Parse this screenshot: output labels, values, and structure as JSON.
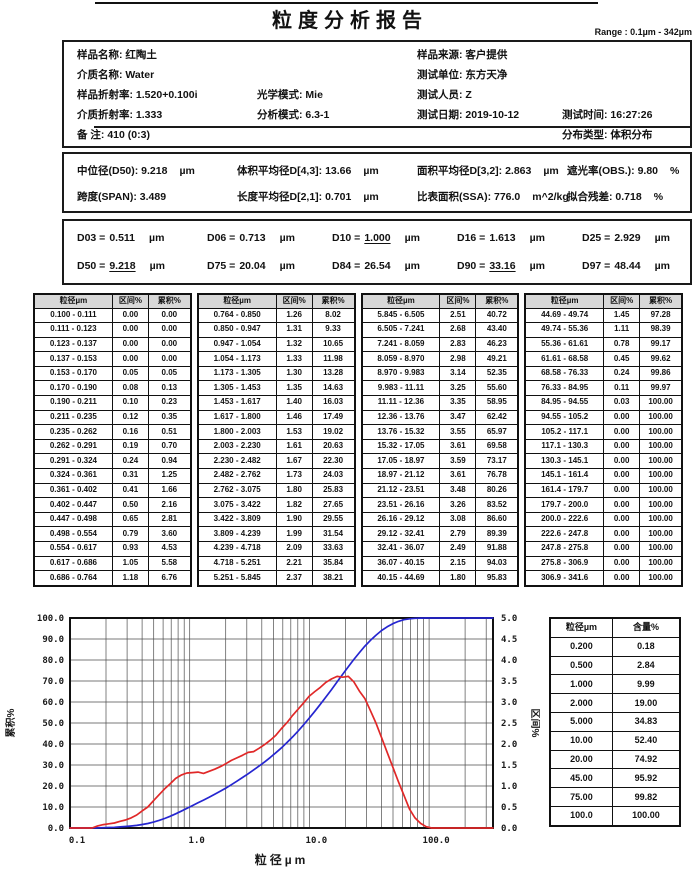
{
  "title": "粒度分析报告",
  "range_label": "Range : 0.1µm - 342µm",
  "info": {
    "sample_name": "样品名称: 红陶土",
    "sample_source": "样品来源: 客户提供",
    "medium_name": "介质名称: Water",
    "test_unit": "测试单位: 东方天净",
    "sample_ri": "样品折射率: 1.520+0.100i",
    "optical_mode": "光学模式: Mie",
    "tester": "测试人员: Z",
    "medium_ri": "介质折射率: 1.333",
    "analysis_mode": "分析模式: 6.3-1",
    "test_date": "测试日期: 2019-10-12",
    "test_time": "测试时间: 16:27:26",
    "remark": "备 注:  410  (0:3)",
    "dist_type": "分布类型: 体积分布"
  },
  "stats": {
    "items": [
      {
        "text": "中位径(D50): 9.218",
        "unit": "µm"
      },
      {
        "text": "体积平均径D[4,3]: 13.66",
        "unit": "µm"
      },
      {
        "text": "面积平均径D[3,2]: 2.863",
        "unit": "µm"
      },
      {
        "text": "遮光率(OBS.): 9.80",
        "unit": "%"
      },
      {
        "text": "跨度(SPAN): 3.489",
        "unit": ""
      },
      {
        "text": "长度平均径D[2,1]: 0.701",
        "unit": "µm"
      },
      {
        "text": "比表面积(SSA): 776.0",
        "unit": "m^2/kg"
      },
      {
        "text": "拟合残差: 0.718",
        "unit": "%"
      }
    ]
  },
  "d_values": [
    {
      "label": "D03 =",
      "value": "0.511",
      "unit": "µm",
      "underline": false
    },
    {
      "label": "D06 =",
      "value": "0.713",
      "unit": "µm",
      "underline": false
    },
    {
      "label": "D10 =",
      "value": "1.000",
      "unit": "µm",
      "underline": true
    },
    {
      "label": "D16 =",
      "value": "1.613",
      "unit": "µm",
      "underline": false
    },
    {
      "label": "D25 =",
      "value": "2.929",
      "unit": "µm",
      "underline": false
    },
    {
      "label": "D50 =",
      "value": "9.218",
      "unit": "µm",
      "underline": true
    },
    {
      "label": "D75 =",
      "value": "20.04",
      "unit": "µm",
      "underline": false
    },
    {
      "label": "D84 =",
      "value": "26.54",
      "unit": "µm",
      "underline": false
    },
    {
      "label": "D90 =",
      "value": "33.16",
      "unit": "µm",
      "underline": true
    },
    {
      "label": "D97 =",
      "value": "48.44",
      "unit": "µm",
      "underline": false
    }
  ],
  "table": {
    "headers": [
      "粒径µm",
      "区间%",
      "累积%"
    ],
    "groups": [
      {
        "rows": [
          [
            "0.100 - 0.111",
            "0.00",
            "0.00"
          ],
          [
            "0.111 - 0.123",
            "0.00",
            "0.00"
          ],
          [
            "0.123 - 0.137",
            "0.00",
            "0.00"
          ],
          [
            "0.137 - 0.153",
            "0.00",
            "0.00"
          ],
          [
            "0.153 - 0.170",
            "0.05",
            "0.05"
          ],
          [
            "0.170 - 0.190",
            "0.08",
            "0.13"
          ],
          [
            "0.190 - 0.211",
            "0.10",
            "0.23"
          ],
          [
            "0.211 - 0.235",
            "0.12",
            "0.35"
          ],
          [
            "0.235 - 0.262",
            "0.16",
            "0.51"
          ],
          [
            "0.262 - 0.291",
            "0.19",
            "0.70"
          ],
          [
            "0.291 - 0.324",
            "0.24",
            "0.94"
          ],
          [
            "0.324 - 0.361",
            "0.31",
            "1.25"
          ],
          [
            "0.361 - 0.402",
            "0.41",
            "1.66"
          ],
          [
            "0.402 - 0.447",
            "0.50",
            "2.16"
          ],
          [
            "0.447 - 0.498",
            "0.65",
            "2.81"
          ],
          [
            "0.498 - 0.554",
            "0.79",
            "3.60"
          ],
          [
            "0.554 - 0.617",
            "0.93",
            "4.53"
          ],
          [
            "0.617 - 0.686",
            "1.05",
            "5.58"
          ],
          [
            "0.686 - 0.764",
            "1.18",
            "6.76"
          ]
        ]
      },
      {
        "rows": [
          [
            "0.764 - 0.850",
            "1.26",
            "8.02"
          ],
          [
            "0.850 - 0.947",
            "1.31",
            "9.33"
          ],
          [
            "0.947 - 1.054",
            "1.32",
            "10.65"
          ],
          [
            "1.054 - 1.173",
            "1.33",
            "11.98"
          ],
          [
            "1.173 - 1.305",
            "1.30",
            "13.28"
          ],
          [
            "1.305 - 1.453",
            "1.35",
            "14.63"
          ],
          [
            "1.453 - 1.617",
            "1.40",
            "16.03"
          ],
          [
            "1.617 - 1.800",
            "1.46",
            "17.49"
          ],
          [
            "1.800 - 2.003",
            "1.53",
            "19.02"
          ],
          [
            "2.003 - 2.230",
            "1.61",
            "20.63"
          ],
          [
            "2.230 - 2.482",
            "1.67",
            "22.30"
          ],
          [
            "2.482 - 2.762",
            "1.73",
            "24.03"
          ],
          [
            "2.762 - 3.075",
            "1.80",
            "25.83"
          ],
          [
            "3.075 - 3.422",
            "1.82",
            "27.65"
          ],
          [
            "3.422 - 3.809",
            "1.90",
            "29.55"
          ],
          [
            "3.809 - 4.239",
            "1.99",
            "31.54"
          ],
          [
            "4.239 - 4.718",
            "2.09",
            "33.63"
          ],
          [
            "4.718 - 5.251",
            "2.21",
            "35.84"
          ],
          [
            "5.251 - 5.845",
            "2.37",
            "38.21"
          ]
        ]
      },
      {
        "rows": [
          [
            "5.845 - 6.505",
            "2.51",
            "40.72"
          ],
          [
            "6.505 - 7.241",
            "2.68",
            "43.40"
          ],
          [
            "7.241 - 8.059",
            "2.83",
            "46.23"
          ],
          [
            "8.059 - 8.970",
            "2.98",
            "49.21"
          ],
          [
            "8.970 - 9.983",
            "3.14",
            "52.35"
          ],
          [
            "9.983 - 11.11",
            "3.25",
            "55.60"
          ],
          [
            "11.11 - 12.36",
            "3.35",
            "58.95"
          ],
          [
            "12.36 - 13.76",
            "3.47",
            "62.42"
          ],
          [
            "13.76 - 15.32",
            "3.55",
            "65.97"
          ],
          [
            "15.32 - 17.05",
            "3.61",
            "69.58"
          ],
          [
            "17.05 - 18.97",
            "3.59",
            "73.17"
          ],
          [
            "18.97 - 21.12",
            "3.61",
            "76.78"
          ],
          [
            "21.12 - 23.51",
            "3.48",
            "80.26"
          ],
          [
            "23.51 - 26.16",
            "3.26",
            "83.52"
          ],
          [
            "26.16 - 29.12",
            "3.08",
            "86.60"
          ],
          [
            "29.12 - 32.41",
            "2.79",
            "89.39"
          ],
          [
            "32.41 - 36.07",
            "2.49",
            "91.88"
          ],
          [
            "36.07 - 40.15",
            "2.15",
            "94.03"
          ],
          [
            "40.15 - 44.69",
            "1.80",
            "95.83"
          ]
        ]
      },
      {
        "rows": [
          [
            "44.69 - 49.74",
            "1.45",
            "97.28"
          ],
          [
            "49.74 - 55.36",
            "1.11",
            "98.39"
          ],
          [
            "55.36 - 61.61",
            "0.78",
            "99.17"
          ],
          [
            "61.61 - 68.58",
            "0.45",
            "99.62"
          ],
          [
            "68.58 - 76.33",
            "0.24",
            "99.86"
          ],
          [
            "76.33 - 84.95",
            "0.11",
            "99.97"
          ],
          [
            "84.95 - 94.55",
            "0.03",
            "100.00"
          ],
          [
            "94.55 - 105.2",
            "0.00",
            "100.00"
          ],
          [
            "105.2 - 117.1",
            "0.00",
            "100.00"
          ],
          [
            "117.1 - 130.3",
            "0.00",
            "100.00"
          ],
          [
            "130.3 - 145.1",
            "0.00",
            "100.00"
          ],
          [
            "145.1 - 161.4",
            "0.00",
            "100.00"
          ],
          [
            "161.4 - 179.7",
            "0.00",
            "100.00"
          ],
          [
            "179.7 - 200.0",
            "0.00",
            "100.00"
          ],
          [
            "200.0 - 222.6",
            "0.00",
            "100.00"
          ],
          [
            "222.6 - 247.8",
            "0.00",
            "100.00"
          ],
          [
            "247.8 - 275.8",
            "0.00",
            "100.00"
          ],
          [
            "275.8 - 306.9",
            "0.00",
            "100.00"
          ],
          [
            "306.9 - 341.6",
            "0.00",
            "100.00"
          ]
        ]
      }
    ]
  },
  "summary_table": {
    "headers": [
      "粒径µm",
      "含量%"
    ],
    "rows": [
      [
        "0.200",
        "0.18"
      ],
      [
        "0.500",
        "2.84"
      ],
      [
        "1.000",
        "9.99"
      ],
      [
        "2.000",
        "19.00"
      ],
      [
        "5.000",
        "34.83"
      ],
      [
        "10.00",
        "52.40"
      ],
      [
        "20.00",
        "74.92"
      ],
      [
        "45.00",
        "95.92"
      ],
      [
        "75.00",
        "99.82"
      ],
      [
        "100.0",
        "100.00"
      ]
    ]
  },
  "chart_data": {
    "type": "line",
    "x_scale": "log",
    "xlabel": "粒径µm",
    "ylabel_left": "累积%",
    "ylabel_right": "区间%",
    "xlim": [
      0.1,
      342
    ],
    "ylim_left": [
      0,
      100
    ],
    "ylim_right": [
      0,
      5
    ],
    "left_tick_step": 10,
    "right_tick_step": 0.5,
    "grid": true,
    "x_ticks": [
      0.1,
      1,
      10,
      100
    ],
    "x_tick_labels": [
      "0.1",
      "1.0",
      "10.0",
      "100.0"
    ],
    "x": [
      0.1,
      0.111,
      0.123,
      0.137,
      0.153,
      0.17,
      0.19,
      0.211,
      0.235,
      0.262,
      0.291,
      0.324,
      0.361,
      0.402,
      0.447,
      0.498,
      0.554,
      0.617,
      0.686,
      0.764,
      0.85,
      0.947,
      1.054,
      1.173,
      1.305,
      1.453,
      1.617,
      1.8,
      2.003,
      2.23,
      2.482,
      2.762,
      3.075,
      3.422,
      3.809,
      4.239,
      4.718,
      5.251,
      5.845,
      6.505,
      7.241,
      8.059,
      8.97,
      9.983,
      11.11,
      12.36,
      13.76,
      15.32,
      17.05,
      18.97,
      21.12,
      23.51,
      26.16,
      29.12,
      32.41,
      36.07,
      40.15,
      44.69,
      49.74,
      55.36,
      61.61,
      68.58,
      76.33,
      84.95,
      94.55,
      105.2,
      117.1,
      130.3,
      145.1,
      161.4,
      179.7,
      200.0,
      222.6,
      247.8,
      275.8,
      306.9,
      341.6
    ],
    "series": [
      {
        "name": "累积%",
        "axis": "left",
        "color": "#2525d0",
        "values": [
          0,
          0.0,
          0.0,
          0.0,
          0.0,
          0.05,
          0.13,
          0.23,
          0.35,
          0.51,
          0.7,
          0.94,
          1.25,
          1.66,
          2.16,
          2.81,
          3.6,
          4.53,
          5.58,
          6.76,
          8.02,
          9.33,
          10.65,
          11.98,
          13.28,
          14.63,
          16.03,
          17.49,
          19.02,
          20.63,
          22.3,
          24.03,
          25.83,
          27.65,
          29.55,
          31.54,
          33.63,
          35.84,
          38.21,
          40.72,
          43.4,
          46.23,
          49.21,
          52.35,
          55.6,
          58.95,
          62.42,
          65.97,
          69.58,
          73.17,
          76.78,
          80.26,
          83.52,
          86.6,
          89.39,
          91.88,
          94.03,
          95.83,
          97.28,
          98.39,
          99.17,
          99.62,
          99.86,
          99.97,
          100.0,
          100.0,
          100.0,
          100.0,
          100.0,
          100.0,
          100.0,
          100.0,
          100.0,
          100.0,
          100.0,
          100.0,
          100.0
        ]
      },
      {
        "name": "区间%",
        "axis": "right",
        "color": "#e02828",
        "values": [
          0,
          0.0,
          0.0,
          0.0,
          0.0,
          0.05,
          0.08,
          0.1,
          0.12,
          0.16,
          0.19,
          0.24,
          0.31,
          0.41,
          0.5,
          0.65,
          0.79,
          0.93,
          1.05,
          1.18,
          1.26,
          1.31,
          1.32,
          1.33,
          1.3,
          1.35,
          1.4,
          1.46,
          1.53,
          1.61,
          1.67,
          1.73,
          1.8,
          1.82,
          1.9,
          1.99,
          2.09,
          2.21,
          2.37,
          2.51,
          2.68,
          2.83,
          2.98,
          3.14,
          3.25,
          3.35,
          3.47,
          3.55,
          3.61,
          3.59,
          3.61,
          3.48,
          3.26,
          3.08,
          2.79,
          2.49,
          2.15,
          1.8,
          1.45,
          1.11,
          0.78,
          0.45,
          0.24,
          0.11,
          0.03,
          0.0,
          0.0,
          0.0,
          0.0,
          0.0,
          0.0,
          0.0,
          0.0,
          0.0,
          0.0,
          0.0,
          0.0
        ]
      }
    ]
  }
}
